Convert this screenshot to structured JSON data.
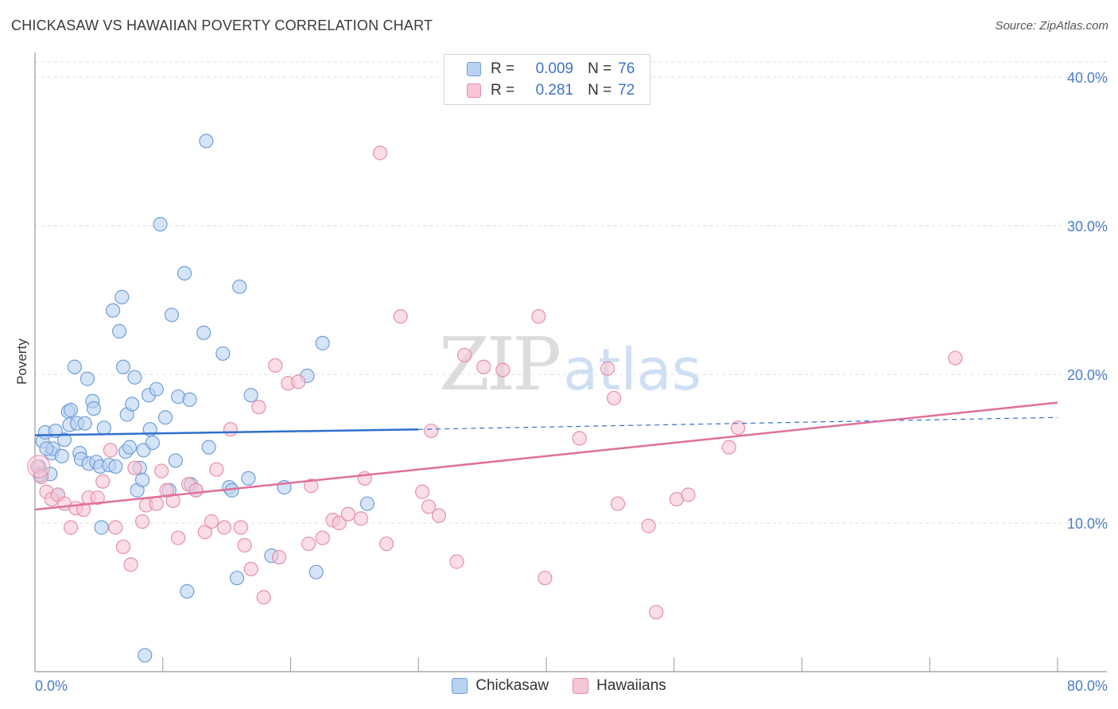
{
  "title": "CHICKASAW VS HAWAIIAN POVERTY CORRELATION CHART",
  "source": "Source: ZipAtlas.com",
  "watermark": {
    "zip": "ZIP",
    "atlas": "atlas"
  },
  "colors": {
    "chickasaw_fill": "#b9d2f2",
    "chickasaw_stroke": "#6f9fd8",
    "chickasaw_line": "#2f6fcf",
    "hawaiians_fill": "#f7c6d6",
    "hawaiians_stroke": "#e58fab",
    "hawaiians_line": "#e0709a",
    "tick": "#4a7cc9",
    "grid": "#dddddd"
  },
  "legend": {
    "rows": [
      {
        "r_label": "R =",
        "r_value": "0.009",
        "n_label": "N =",
        "n_value": "76"
      },
      {
        "r_label": "R =",
        "r_value": "0.281",
        "n_label": "N =",
        "n_value": "72"
      }
    ]
  },
  "bottom_legend": [
    "Chickasaw",
    "Hawaiians"
  ],
  "chart_data": {
    "type": "scatter",
    "title": "CHICKASAW VS HAWAIIAN POVERTY CORRELATION CHART",
    "xlabel": "",
    "ylabel": "Poverty",
    "xlim": [
      0,
      80
    ],
    "ylim": [
      0,
      40
    ],
    "x_tick_labels": [
      "0.0%",
      "80.0%"
    ],
    "y_ticks": [
      10,
      20,
      30,
      40
    ],
    "y_tick_labels": [
      "10.0%",
      "20.0%",
      "30.0%",
      "40.0%"
    ],
    "grid": "horizontal dashed",
    "legend_position": "top-center",
    "series": [
      {
        "name": "Chickasaw",
        "trend": {
          "x": [
            0,
            30,
            80
          ],
          "y": [
            15.9,
            16.3,
            17.1
          ],
          "solid_until": 30
        },
        "points": [
          [
            0.3,
            13.8
          ],
          [
            0.5,
            13.3
          ],
          [
            0.6,
            15.5
          ],
          [
            0.8,
            16.1
          ],
          [
            1.2,
            13.3
          ],
          [
            1.3,
            14.7
          ],
          [
            1.4,
            15.0
          ],
          [
            1.6,
            16.2
          ],
          [
            1.8,
            11.9
          ],
          [
            2.1,
            14.5
          ],
          [
            2.3,
            15.6
          ],
          [
            2.6,
            17.5
          ],
          [
            2.7,
            16.6
          ],
          [
            2.8,
            17.6
          ],
          [
            3.1,
            20.5
          ],
          [
            3.3,
            16.7
          ],
          [
            3.5,
            14.7
          ],
          [
            3.6,
            14.3
          ],
          [
            3.9,
            16.7
          ],
          [
            4.1,
            19.7
          ],
          [
            4.2,
            14.0
          ],
          [
            4.5,
            18.2
          ],
          [
            4.6,
            17.7
          ],
          [
            4.8,
            14.1
          ],
          [
            5.1,
            13.8
          ],
          [
            5.2,
            9.7
          ],
          [
            5.4,
            16.4
          ],
          [
            5.8,
            13.9
          ],
          [
            6.1,
            24.3
          ],
          [
            6.3,
            13.8
          ],
          [
            6.6,
            22.9
          ],
          [
            6.8,
            25.2
          ],
          [
            6.9,
            20.5
          ],
          [
            7.1,
            14.8
          ],
          [
            7.2,
            17.3
          ],
          [
            7.4,
            15.1
          ],
          [
            7.6,
            18.0
          ],
          [
            7.8,
            19.8
          ],
          [
            8.0,
            12.2
          ],
          [
            8.2,
            13.7
          ],
          [
            8.4,
            12.9
          ],
          [
            8.5,
            14.9
          ],
          [
            8.6,
            1.1
          ],
          [
            8.9,
            18.6
          ],
          [
            9.0,
            16.3
          ],
          [
            9.2,
            15.4
          ],
          [
            9.5,
            19.0
          ],
          [
            9.8,
            30.1
          ],
          [
            10.2,
            17.1
          ],
          [
            10.5,
            12.2
          ],
          [
            10.7,
            24.0
          ],
          [
            11.0,
            14.2
          ],
          [
            11.2,
            18.5
          ],
          [
            11.7,
            26.8
          ],
          [
            11.9,
            5.4
          ],
          [
            12.1,
            18.3
          ],
          [
            12.2,
            12.6
          ],
          [
            12.6,
            12.2
          ],
          [
            13.2,
            22.8
          ],
          [
            13.4,
            35.7
          ],
          [
            13.6,
            15.1
          ],
          [
            14.7,
            21.4
          ],
          [
            15.2,
            12.4
          ],
          [
            15.4,
            12.2
          ],
          [
            15.8,
            6.3
          ],
          [
            16.0,
            25.9
          ],
          [
            16.7,
            13.0
          ],
          [
            16.9,
            18.6
          ],
          [
            18.5,
            7.8
          ],
          [
            19.5,
            12.4
          ],
          [
            21.3,
            19.9
          ],
          [
            22.0,
            6.7
          ],
          [
            22.5,
            22.1
          ],
          [
            26.0,
            11.3
          ],
          [
            0.4,
            13.2
          ],
          [
            0.9,
            15.0
          ]
        ]
      },
      {
        "name": "Hawaiians",
        "trend": {
          "x": [
            0,
            80
          ],
          "y": [
            10.9,
            18.1
          ]
        },
        "points": [
          [
            0.2,
            13.8
          ],
          [
            0.5,
            13.1
          ],
          [
            0.9,
            12.1
          ],
          [
            1.3,
            11.6
          ],
          [
            1.8,
            11.9
          ],
          [
            2.3,
            11.3
          ],
          [
            2.8,
            9.7
          ],
          [
            3.2,
            11.0
          ],
          [
            3.8,
            10.9
          ],
          [
            4.2,
            11.7
          ],
          [
            4.9,
            11.7
          ],
          [
            5.3,
            12.8
          ],
          [
            5.9,
            14.9
          ],
          [
            6.3,
            9.7
          ],
          [
            6.9,
            8.4
          ],
          [
            7.5,
            7.2
          ],
          [
            7.8,
            13.7
          ],
          [
            8.4,
            10.1
          ],
          [
            8.7,
            11.2
          ],
          [
            9.5,
            11.3
          ],
          [
            9.9,
            13.5
          ],
          [
            10.3,
            12.2
          ],
          [
            10.8,
            11.5
          ],
          [
            11.2,
            9.0
          ],
          [
            12.0,
            12.6
          ],
          [
            12.6,
            12.2
          ],
          [
            13.3,
            9.4
          ],
          [
            13.8,
            10.1
          ],
          [
            14.2,
            13.6
          ],
          [
            14.8,
            9.7
          ],
          [
            15.3,
            16.3
          ],
          [
            16.1,
            9.7
          ],
          [
            16.4,
            8.5
          ],
          [
            16.9,
            6.9
          ],
          [
            17.5,
            17.8
          ],
          [
            17.9,
            5.0
          ],
          [
            18.8,
            20.6
          ],
          [
            19.1,
            7.7
          ],
          [
            19.8,
            19.4
          ],
          [
            20.6,
            19.5
          ],
          [
            21.4,
            8.6
          ],
          [
            21.6,
            12.5
          ],
          [
            22.5,
            9.0
          ],
          [
            23.3,
            10.2
          ],
          [
            23.8,
            10.0
          ],
          [
            24.5,
            10.6
          ],
          [
            25.5,
            10.3
          ],
          [
            25.8,
            13.0
          ],
          [
            27.0,
            34.9
          ],
          [
            27.5,
            8.6
          ],
          [
            28.6,
            23.9
          ],
          [
            30.3,
            12.1
          ],
          [
            30.8,
            11.1
          ],
          [
            31.0,
            16.2
          ],
          [
            31.6,
            10.5
          ],
          [
            33.0,
            7.4
          ],
          [
            33.6,
            21.3
          ],
          [
            35.1,
            20.5
          ],
          [
            36.6,
            20.3
          ],
          [
            39.4,
            23.9
          ],
          [
            39.9,
            6.3
          ],
          [
            42.6,
            15.7
          ],
          [
            44.8,
            20.4
          ],
          [
            45.3,
            18.4
          ],
          [
            45.6,
            11.3
          ],
          [
            48.0,
            9.8
          ],
          [
            48.6,
            4.0
          ],
          [
            50.2,
            11.6
          ],
          [
            51.1,
            11.9
          ],
          [
            54.3,
            15.1
          ],
          [
            55.0,
            16.4
          ],
          [
            72.0,
            21.1
          ]
        ]
      }
    ]
  }
}
